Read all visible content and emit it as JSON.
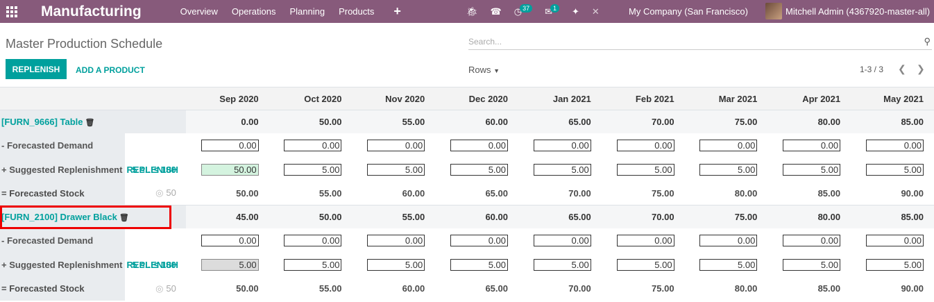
{
  "nav": {
    "app_title": "Manufacturing",
    "menu": [
      "Overview",
      "Operations",
      "Planning",
      "Products"
    ],
    "plus": "+",
    "activity_badge": "37",
    "message_badge": "1",
    "company": "My Company (San Francisco)",
    "user": "Mitchell Admin (4367920-master-all)"
  },
  "control": {
    "title": "Master Production Schedule",
    "search_placeholder": "Search...",
    "replenish_label": "REPLENISH",
    "add_product_label": "ADD A PRODUCT",
    "rows_label": "Rows",
    "pager": "1-3 / 3"
  },
  "columns": [
    "Sep 2020",
    "Oct 2020",
    "Nov 2020",
    "Dec 2020",
    "Jan 2021",
    "Feb 2021",
    "Mar 2021",
    "Apr 2021",
    "May 2021"
  ],
  "products": [
    {
      "name": "[FURN_9666] Table",
      "totals": [
        "0.00",
        "50.00",
        "55.00",
        "60.00",
        "65.00",
        "70.00",
        "75.00",
        "80.00",
        "85.00"
      ],
      "demand_label": "- Forecasted Demand",
      "demand": [
        "0.00",
        "0.00",
        "0.00",
        "0.00",
        "0.00",
        "0.00",
        "0.00",
        "0.00",
        "0.00"
      ],
      "repl_label": "+ Suggested Replenishment",
      "repl_link": "REPLENISH",
      "repl_range": "5 ≤…≤ 100",
      "repl": [
        "50.00",
        "5.00",
        "5.00",
        "5.00",
        "5.00",
        "5.00",
        "5.00",
        "5.00",
        "5.00"
      ],
      "repl_first_state": "green",
      "stock_label": "= Forecasted Stock",
      "safety_stock": "50",
      "stock": [
        "50.00",
        "55.00",
        "60.00",
        "65.00",
        "70.00",
        "75.00",
        "80.00",
        "85.00",
        "90.00"
      ]
    },
    {
      "name": "[FURN_2100] Drawer Black",
      "totals": [
        "45.00",
        "50.00",
        "55.00",
        "60.00",
        "65.00",
        "70.00",
        "75.00",
        "80.00",
        "85.00"
      ],
      "demand_label": "- Forecasted Demand",
      "demand": [
        "0.00",
        "0.00",
        "0.00",
        "0.00",
        "0.00",
        "0.00",
        "0.00",
        "0.00",
        "0.00"
      ],
      "repl_label": "+ Suggested Replenishment",
      "repl_link": "REPLENISH",
      "repl_range": "5 ≤…≤ 100",
      "repl": [
        "5.00",
        "5.00",
        "5.00",
        "5.00",
        "5.00",
        "5.00",
        "5.00",
        "5.00",
        "5.00"
      ],
      "repl_first_state": "grey",
      "stock_label": "= Forecasted Stock",
      "safety_stock": "50",
      "stock": [
        "50.00",
        "55.00",
        "60.00",
        "65.00",
        "70.00",
        "75.00",
        "80.00",
        "85.00",
        "90.00"
      ]
    }
  ],
  "colors": {
    "brand": "#875A7B",
    "accent": "#00A09D",
    "highlight": "#ee0000"
  }
}
